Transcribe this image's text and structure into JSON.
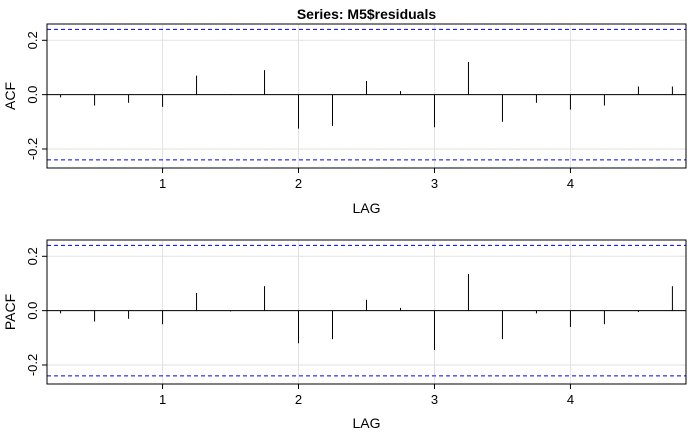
{
  "chart_data": [
    {
      "type": "bar",
      "title": "Series:  M5$residuals",
      "xlabel": "LAG",
      "ylabel": "ACF",
      "xlim": [
        0.15,
        4.85
      ],
      "ylim": [
        -0.27,
        0.26
      ],
      "xticks": [
        1,
        2,
        3,
        4
      ],
      "yticks": [
        -0.2,
        0.0,
        0.2
      ],
      "ytick_labels": [
        "-0.2",
        "0.0",
        "0.2"
      ],
      "grid": true,
      "confidence_bound": 0.24,
      "bound_color": "#0000ff",
      "x": [
        0.25,
        0.5,
        0.75,
        1.0,
        1.25,
        1.5,
        1.75,
        2.0,
        2.25,
        2.5,
        2.75,
        3.0,
        3.25,
        3.5,
        3.75,
        4.0,
        4.25,
        4.5,
        4.75
      ],
      "values": [
        -0.01,
        -0.04,
        -0.03,
        -0.045,
        0.07,
        0.002,
        0.09,
        -0.125,
        -0.115,
        0.05,
        0.013,
        -0.12,
        0.12,
        -0.1,
        -0.03,
        -0.055,
        -0.04,
        0.03,
        0.03
      ]
    },
    {
      "type": "bar",
      "title": "",
      "xlabel": "LAG",
      "ylabel": "PACF",
      "xlim": [
        0.15,
        4.85
      ],
      "ylim": [
        -0.27,
        0.26
      ],
      "xticks": [
        1,
        2,
        3,
        4
      ],
      "yticks": [
        -0.2,
        0.0,
        0.2
      ],
      "ytick_labels": [
        "-0.2",
        "0.0",
        "0.2"
      ],
      "grid": true,
      "confidence_bound": 0.24,
      "bound_color": "#0000ff",
      "x": [
        0.25,
        0.5,
        0.75,
        1.0,
        1.25,
        1.5,
        1.75,
        2.0,
        2.25,
        2.5,
        2.75,
        3.0,
        3.25,
        3.5,
        3.75,
        4.0,
        4.25,
        4.5,
        4.75
      ],
      "values": [
        -0.01,
        -0.04,
        -0.03,
        -0.05,
        0.065,
        -0.003,
        0.09,
        -0.12,
        -0.105,
        0.04,
        0.01,
        -0.145,
        0.135,
        -0.105,
        -0.01,
        -0.06,
        -0.05,
        -0.005,
        0.09
      ]
    }
  ]
}
